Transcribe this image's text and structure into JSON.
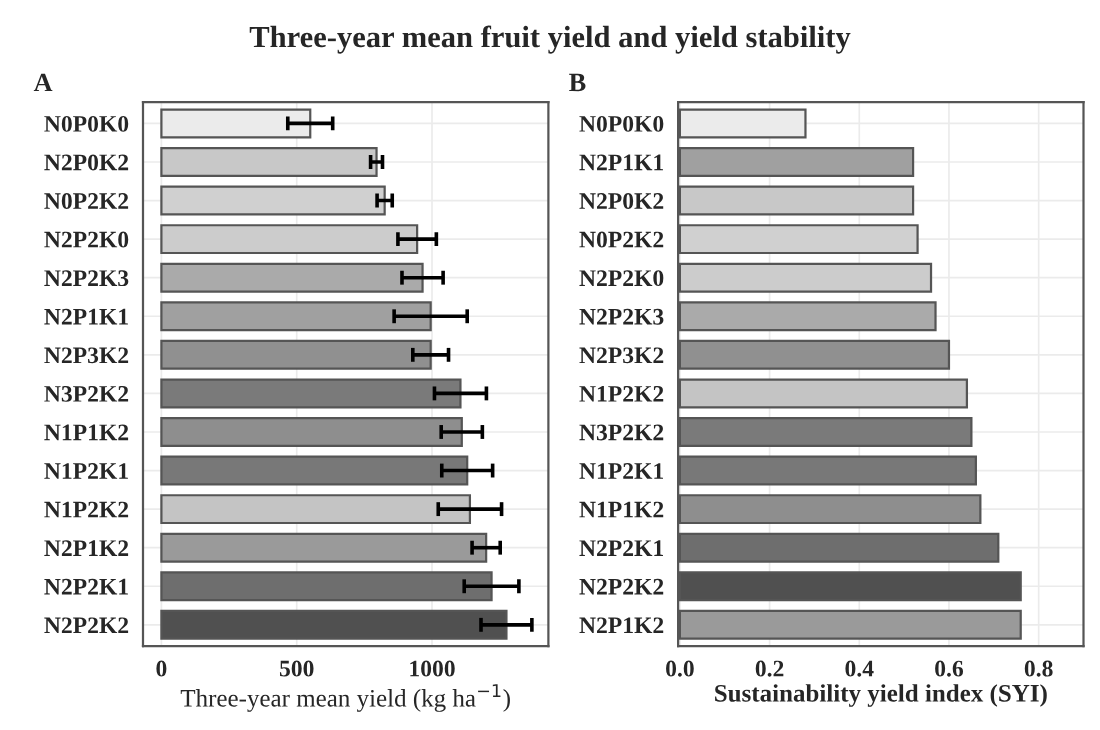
{
  "chart_data": [
    {
      "type": "bar",
      "orientation": "horizontal",
      "title": "A",
      "xlabel": "Three-year mean yield (kg ha$^{−1}$)",
      "annotations": [
        "Three-year mean fruit yield and yield stability"
      ],
      "categories": [
        "N0P0K0",
        "N2P0K2",
        "N0P2K2",
        "N2P2K0",
        "N2P2K3",
        "N2P1K1",
        "N2P3K2",
        "N3P2K2",
        "N1P1K2",
        "N1P2K1",
        "N1P2K2",
        "N2P1K2",
        "N2P2K1",
        "N2P2K2"
      ],
      "values": [
        550,
        795,
        825,
        945,
        965,
        995,
        995,
        1105,
        1110,
        1130,
        1140,
        1200,
        1220,
        1275
      ],
      "errors": [
        83,
        22,
        28,
        71,
        76,
        135,
        66,
        96,
        76,
        94,
        117,
        52,
        101,
        94
      ],
      "colors": [
        "#ebebeb",
        "#c8c8c8",
        "#d0d0d0",
        "#cccccc",
        "#aaaaaa",
        "#a0a0a0",
        "#909090",
        "#7a7a7a",
        "#8e8e8e",
        "#787878",
        "#c4c4c4",
        "#9a9a9a",
        "#6e6e6e",
        "#505050"
      ],
      "xlim": [
        -68,
        1430
      ],
      "xticks": [
        0,
        500,
        1000
      ],
      "grid": true
    },
    {
      "type": "bar",
      "orientation": "horizontal",
      "title": "B",
      "xlabel": "Sustainability yield index (SYI)",
      "categories": [
        "N0P0K0",
        "N2P1K1",
        "N2P0K2",
        "N0P2K2",
        "N2P2K0",
        "N2P2K3",
        "N2P3K2",
        "N1P2K2",
        "N3P2K2",
        "N1P2K1",
        "N1P1K2",
        "N2P2K1",
        "N2P2K2",
        "N2P1K2"
      ],
      "values": [
        0.28,
        0.52,
        0.52,
        0.53,
        0.56,
        0.57,
        0.6,
        0.64,
        0.65,
        0.66,
        0.67,
        0.71,
        0.76,
        0.76
      ],
      "colors": [
        "#ebebeb",
        "#a0a0a0",
        "#c8c8c8",
        "#d0d0d0",
        "#cccccc",
        "#aaaaaa",
        "#909090",
        "#c4c4c4",
        "#7a7a7a",
        "#787878",
        "#8e8e8e",
        "#6e6e6e",
        "#505050",
        "#9a9a9a"
      ],
      "xlim": [
        -0.004,
        0.9
      ],
      "xticks": [
        {
          "value": 0,
          "label": "0.0"
        },
        0.2,
        0.4,
        0.6,
        0.8
      ],
      "grid": true
    }
  ]
}
